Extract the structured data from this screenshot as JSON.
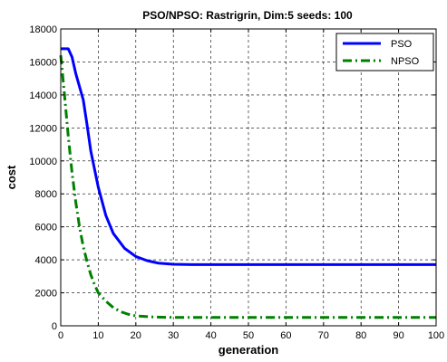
{
  "chart_data": {
    "type": "line",
    "title": "PSO/NPSO: Rastrigrin, Dim:5 seeds: 100",
    "xlabel": "generation",
    "ylabel": "cost",
    "xlim": [
      0,
      100
    ],
    "ylim": [
      0,
      18000
    ],
    "xticks": [
      0,
      10,
      20,
      30,
      40,
      50,
      60,
      70,
      80,
      90,
      100
    ],
    "yticks": [
      0,
      2000,
      4000,
      6000,
      8000,
      10000,
      12000,
      14000,
      16000,
      18000
    ],
    "grid": true,
    "legend_position": "top-right",
    "series": [
      {
        "name": "PSO",
        "color": "#0000ff",
        "style": "solid",
        "points": [
          [
            0,
            16800
          ],
          [
            2,
            16800
          ],
          [
            3,
            16300
          ],
          [
            4,
            15300
          ],
          [
            6,
            13700
          ],
          [
            7,
            12200
          ],
          [
            8,
            10600
          ],
          [
            10,
            8400
          ],
          [
            12,
            6700
          ],
          [
            14,
            5600
          ],
          [
            17,
            4700
          ],
          [
            20,
            4200
          ],
          [
            23,
            3950
          ],
          [
            26,
            3800
          ],
          [
            30,
            3730
          ],
          [
            35,
            3710
          ],
          [
            100,
            3710
          ]
        ]
      },
      {
        "name": "NPSO",
        "color": "#008000",
        "style": "dashdot",
        "points": [
          [
            0,
            16400
          ],
          [
            1,
            14000
          ],
          [
            2,
            11500
          ],
          [
            3,
            9300
          ],
          [
            4,
            7500
          ],
          [
            5,
            6000
          ],
          [
            6,
            4800
          ],
          [
            7,
            3900
          ],
          [
            8,
            3100
          ],
          [
            9,
            2500
          ],
          [
            10,
            2000
          ],
          [
            12,
            1500
          ],
          [
            14,
            1100
          ],
          [
            16,
            850
          ],
          [
            18,
            700
          ],
          [
            20,
            600
          ],
          [
            25,
            530
          ],
          [
            30,
            510
          ],
          [
            100,
            510
          ]
        ]
      }
    ]
  }
}
